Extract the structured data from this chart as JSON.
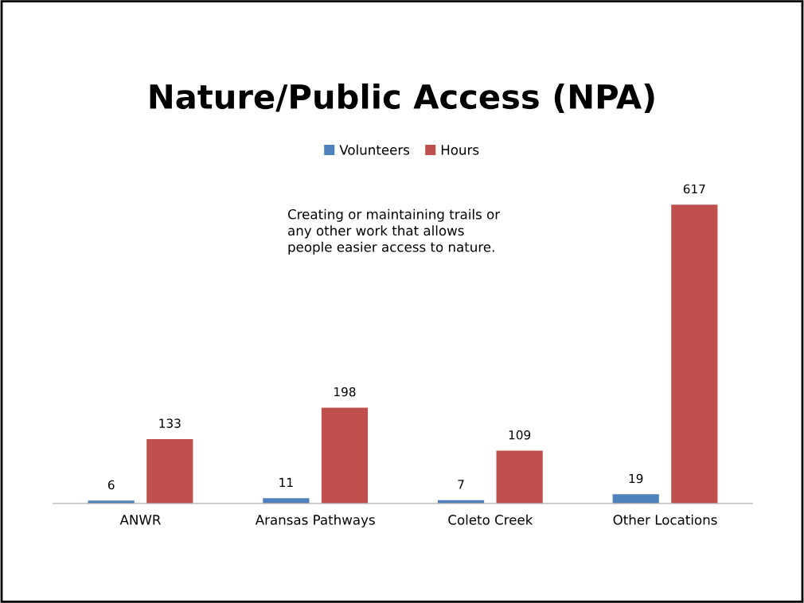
{
  "chart_data": {
    "type": "bar",
    "title": "Nature/Public Access (NPA)",
    "categories": [
      "ANWR",
      "Aransas Pathways",
      "Coleto Creek",
      "Other Locations"
    ],
    "series": [
      {
        "name": "Volunteers",
        "color": "#4f81bd",
        "values": [
          6,
          11,
          7,
          19
        ]
      },
      {
        "name": "Hours",
        "color": "#c0504d",
        "values": [
          133,
          198,
          109,
          617
        ]
      }
    ],
    "data_labels": true,
    "legend": "top",
    "annotations": [
      "Creating or maintaining trails or\nany other work that allows\npeople easier access to nature."
    ]
  }
}
